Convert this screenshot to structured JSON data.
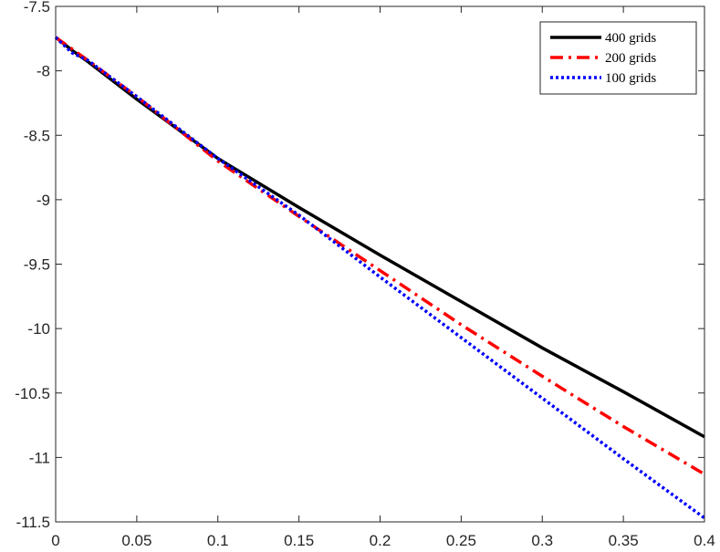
{
  "chart_data": {
    "type": "line",
    "title": "",
    "xlabel": "",
    "ylabel": "",
    "xlim": [
      0,
      0.4
    ],
    "ylim": [
      -11.5,
      -7.5
    ],
    "xticks": [
      0,
      0.05,
      0.1,
      0.15,
      0.2,
      0.25,
      0.3,
      0.35,
      0.4
    ],
    "xtick_labels": [
      "0",
      "0.05",
      "0.1",
      "0.15",
      "0.2",
      "0.25",
      "0.3",
      "0.35",
      "0.4"
    ],
    "yticks": [
      -7.5,
      -8,
      -8.5,
      -9,
      -9.5,
      -10,
      -10.5,
      -11,
      -11.5
    ],
    "ytick_labels": [
      "-7.5",
      "-8",
      "-8.5",
      "-9",
      "-9.5",
      "-10",
      "-10.5",
      "-11",
      "-11.5"
    ],
    "grid": false,
    "legend_position": "top-right",
    "series": [
      {
        "name": "400 grids",
        "color": "#000000",
        "style": "solid",
        "x": [
          0,
          0.01,
          0.02,
          0.05,
          0.1,
          0.15,
          0.2,
          0.25,
          0.3,
          0.35,
          0.4
        ],
        "y": [
          -7.74,
          -7.84,
          -7.93,
          -8.22,
          -8.68,
          -9.06,
          -9.43,
          -9.79,
          -10.15,
          -10.49,
          -10.84
        ]
      },
      {
        "name": "200 grids",
        "color": "#ff0000",
        "style": "dashdot",
        "x": [
          0,
          0.01,
          0.02,
          0.05,
          0.1,
          0.15,
          0.2,
          0.25,
          0.3,
          0.35,
          0.4
        ],
        "y": [
          -7.74,
          -7.83,
          -7.92,
          -8.2,
          -8.7,
          -9.13,
          -9.55,
          -9.97,
          -10.37,
          -10.76,
          -11.13
        ]
      },
      {
        "name": "100 grids",
        "color": "#0000ff",
        "style": "dotted",
        "x": [
          0,
          0.005,
          0.01,
          0.02,
          0.05,
          0.1,
          0.15,
          0.2,
          0.25,
          0.3,
          0.35,
          0.4
        ],
        "y": [
          -7.74,
          -7.8,
          -7.86,
          -7.92,
          -8.2,
          -8.68,
          -9.12,
          -9.6,
          -10.07,
          -10.54,
          -11.01,
          -11.47
        ]
      }
    ]
  }
}
